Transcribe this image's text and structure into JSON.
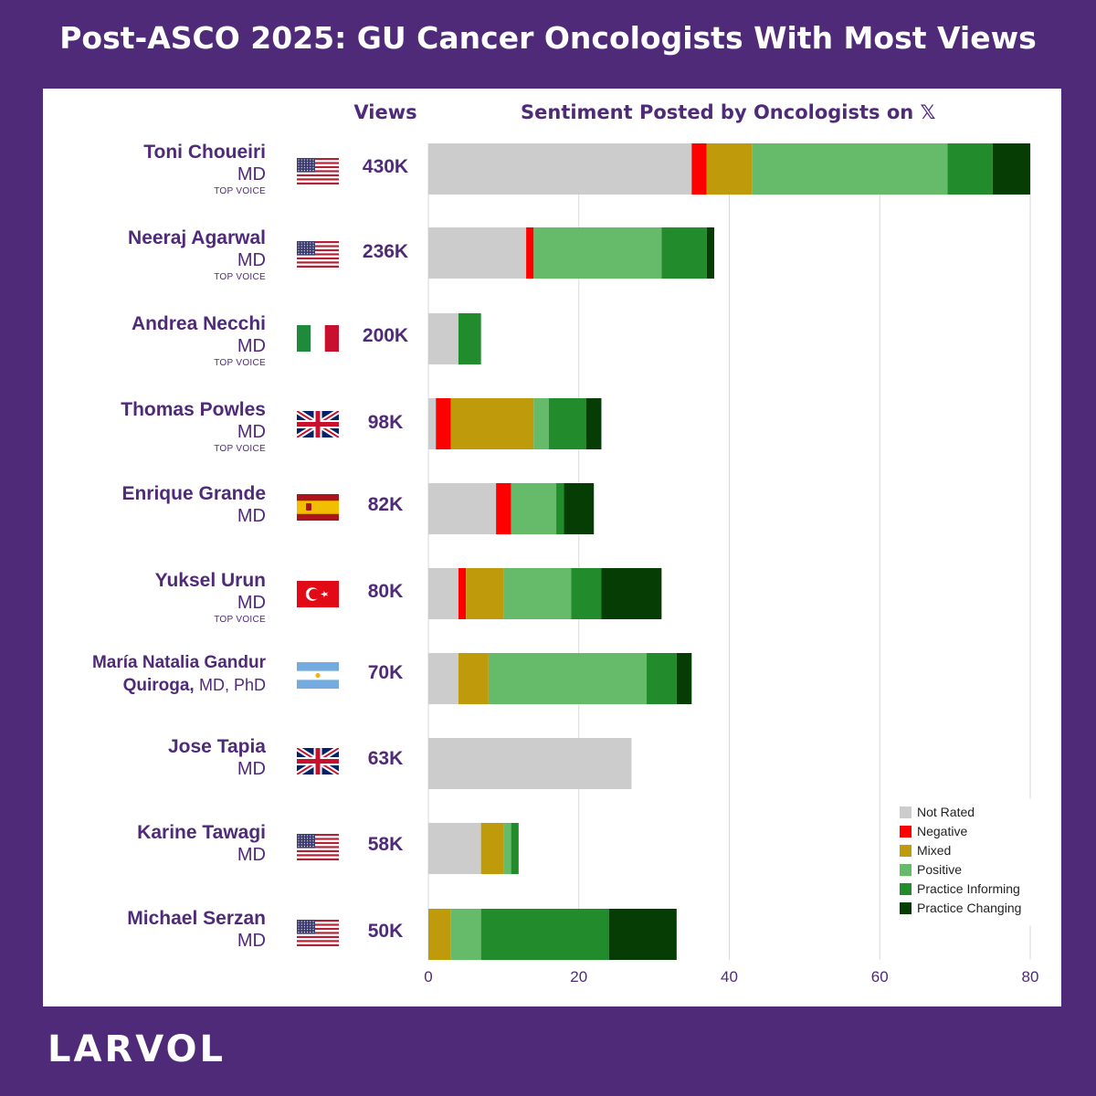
{
  "title": "Post-ASCO 2025: GU Cancer Oncologists With Most Views",
  "logo": "LARVOL",
  "headers": {
    "views": "Views",
    "sentiment": "Sentiment Posted by Oncologists on",
    "x_icon": "𝕏"
  },
  "oncologists": [
    {
      "name": "Toni Choueiri",
      "credential": "MD",
      "badge": "TOP VOICE",
      "country": "United States",
      "flag_icon": "us-flag-icon",
      "views": "430K"
    },
    {
      "name": "Neeraj Agarwal",
      "credential": "MD",
      "badge": "TOP VOICE",
      "country": "United States",
      "flag_icon": "us-flag-icon",
      "views": "236K"
    },
    {
      "name": "Andrea Necchi",
      "credential": "MD",
      "badge": "TOP VOICE",
      "country": "Italy",
      "flag_icon": "italy-flag-icon",
      "views": "200K"
    },
    {
      "name": "Thomas Powles",
      "credential": "MD",
      "badge": "TOP VOICE",
      "country": "United Kingdom",
      "flag_icon": "uk-flag-icon",
      "views": "98K"
    },
    {
      "name": "Enrique Grande",
      "credential": "MD",
      "badge": "",
      "country": "Spain",
      "flag_icon": "spain-flag-icon",
      "views": "82K"
    },
    {
      "name": "Yuksel Urun",
      "credential": "MD",
      "badge": "TOP VOICE",
      "country": "Turkey",
      "flag_icon": "turkey-flag-icon",
      "views": "80K"
    },
    {
      "name_line1": "María Natalia Gandur",
      "name_line2": "Quiroga,",
      "credential": "MD, PhD",
      "badge": "",
      "country": "Argentina",
      "flag_icon": "argentina-flag-icon",
      "views": "70K"
    },
    {
      "name": "Jose Tapia",
      "credential": "MD",
      "badge": "",
      "country": "United Kingdom",
      "flag_icon": "uk-flag-icon",
      "views": "63K"
    },
    {
      "name": "Karine Tawagi",
      "credential": "MD",
      "badge": "",
      "country": "United States",
      "flag_icon": "us-flag-icon",
      "views": "58K"
    },
    {
      "name": "Michael Serzan",
      "credential": "MD",
      "badge": "",
      "country": "United States",
      "flag_icon": "us-flag-icon",
      "views": "50K"
    }
  ],
  "chart_data": {
    "type": "bar",
    "orientation": "horizontal",
    "stacked": true,
    "categories": [
      "Toni Choueiri",
      "Neeraj Agarwal",
      "Andrea Necchi",
      "Thomas Powles",
      "Enrique Grande",
      "Yuksel Urun",
      "María Natalia Gandur Quiroga",
      "Jose Tapia",
      "Karine Tawagi",
      "Michael Serzan"
    ],
    "series": [
      {
        "name": "Not Rated",
        "color": "#cccccc",
        "values": [
          35,
          13,
          4,
          1,
          9,
          4,
          4,
          27,
          7,
          0
        ]
      },
      {
        "name": "Negative",
        "color": "#ff0000",
        "values": [
          2,
          1,
          0,
          2,
          2,
          1,
          0,
          0,
          0,
          0
        ]
      },
      {
        "name": "Mixed",
        "color": "#bf9b0c",
        "values": [
          6,
          0,
          0,
          11,
          0,
          5,
          4,
          0,
          3,
          3
        ]
      },
      {
        "name": "Positive",
        "color": "#66bb6a",
        "values": [
          26,
          17,
          0,
          2,
          6,
          9,
          21,
          0,
          1,
          4
        ]
      },
      {
        "name": "Practice Informing",
        "color": "#228b2c",
        "values": [
          6,
          6,
          3,
          5,
          1,
          4,
          4,
          0,
          1,
          17
        ]
      },
      {
        "name": "Practice Changing",
        "color": "#053d05",
        "values": [
          5,
          1,
          0,
          2,
          4,
          8,
          2,
          0,
          0,
          9
        ]
      }
    ],
    "xlim": [
      0,
      80
    ],
    "xticks": [
      0,
      20,
      40,
      60,
      80
    ],
    "grid": "vertical",
    "legend_position": "bottom-right"
  }
}
